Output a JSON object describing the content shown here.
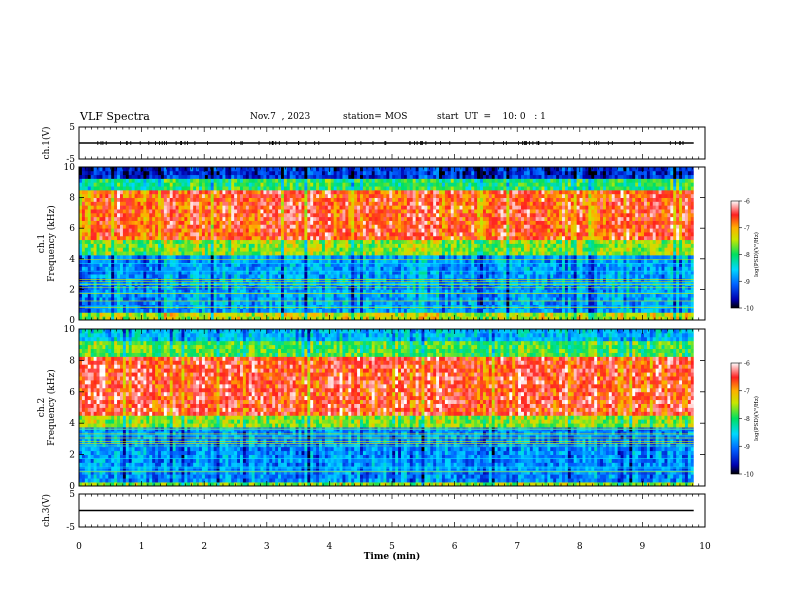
{
  "header": {
    "title": "VLF Spectra",
    "date": "Nov.7  , 2023",
    "station": "station= MOS",
    "start": "start  UT  =    10: 0   : 1"
  },
  "chart_data": [
    {
      "type": "line",
      "panel": "ch1-waveform",
      "ylabel": "ch.1(V)",
      "ylim": [
        -5,
        5
      ],
      "yticks": [
        "5",
        "-5"
      ],
      "xlim": [
        0,
        10
      ],
      "x": [
        0,
        9.82
      ],
      "y": [
        0,
        0
      ]
    },
    {
      "type": "heatmap",
      "panel": "ch1-spectrogram",
      "ylabel": "ch.1\nFrequency (kHz)",
      "ylim": [
        0,
        10
      ],
      "yticks": [
        "0",
        "2",
        "4",
        "6",
        "8",
        "10"
      ],
      "xlim": [
        0,
        10
      ],
      "data_end_x": 9.82,
      "colorbar": {
        "label": "log(PSD)(V²/Hz)",
        "range": [
          -10,
          -6
        ],
        "ticks": [
          "-6",
          "-7",
          "-8",
          "-9",
          "-10"
        ]
      },
      "bands_khz": [
        {
          "from": 9.3,
          "to": 10,
          "level": -9.4
        },
        {
          "from": 8.6,
          "to": 9.3,
          "level": -8.0
        },
        {
          "from": 5.2,
          "to": 8.6,
          "level": -6.6
        },
        {
          "from": 4.2,
          "to": 5.2,
          "level": -7.6
        },
        {
          "from": 0.4,
          "to": 4.2,
          "level": -8.8
        },
        {
          "from": 0,
          "to": 0.4,
          "level": -7.4
        }
      ]
    },
    {
      "type": "heatmap",
      "panel": "ch2-spectrogram",
      "ylabel": "ch.2\nFrequency (kHz)",
      "ylim": [
        0,
        10
      ],
      "yticks": [
        "0",
        "2",
        "4",
        "6",
        "8",
        "10"
      ],
      "xlim": [
        0,
        10
      ],
      "data_end_x": 9.82,
      "colorbar": {
        "label": "log(PSD)(V²/Hz)",
        "range": [
          -10,
          -6
        ],
        "ticks": [
          "-6",
          "-7",
          "-8",
          "-9",
          "-10"
        ]
      },
      "bands_khz": [
        {
          "from": 9.3,
          "to": 10,
          "level": -8.6
        },
        {
          "from": 8.3,
          "to": 9.3,
          "level": -7.8
        },
        {
          "from": 4.6,
          "to": 8.3,
          "level": -6.5
        },
        {
          "from": 3.8,
          "to": 4.6,
          "level": -7.6
        },
        {
          "from": 0.3,
          "to": 3.8,
          "level": -8.9
        },
        {
          "from": 0,
          "to": 0.3,
          "level": -7.6
        }
      ]
    },
    {
      "type": "line",
      "panel": "ch3-waveform",
      "ylabel": "ch.3(V)",
      "ylim": [
        -5,
        5
      ],
      "yticks": [
        "5",
        "-5"
      ],
      "xlim": [
        0,
        10
      ],
      "x": [
        0,
        9.82
      ],
      "y": [
        0,
        0
      ]
    }
  ],
  "xaxis": {
    "label": "Time  (min)",
    "ticks": [
      "0",
      "1",
      "2",
      "3",
      "4",
      "5",
      "6",
      "7",
      "8",
      "9",
      "10"
    ]
  },
  "colors": {
    "background": "#ffffff",
    "axis": "#000000"
  }
}
